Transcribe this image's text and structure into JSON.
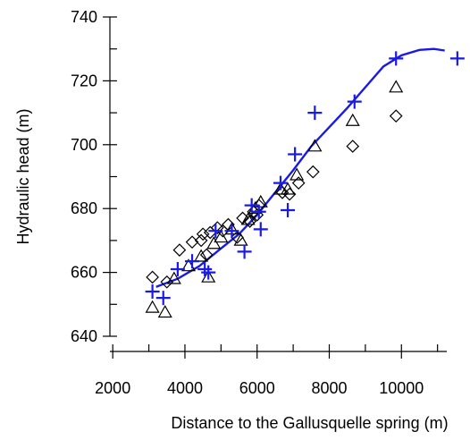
{
  "chart_data": {
    "type": "scatter",
    "title": "",
    "xlabel": "Distance to the Gallusquelle spring (m)",
    "ylabel": "Hydraulic head (m)",
    "xlim": [
      1500,
      11900
    ],
    "ylim": [
      640,
      740
    ],
    "xticks_major": [
      2000,
      4000,
      6000,
      8000,
      10000
    ],
    "xticks_minor": [
      3000,
      5000,
      7000,
      9000,
      11000
    ],
    "yticks_major": [
      640,
      660,
      680,
      700,
      720,
      740
    ],
    "yticks_minor": [
      650,
      670,
      690,
      710,
      730
    ],
    "grid": false,
    "legend": "none",
    "series": [
      {
        "marker": "diamond",
        "color": "#000000",
        "points": [
          [
            3100,
            658.5
          ],
          [
            3500,
            657
          ],
          [
            3850,
            667
          ],
          [
            4200,
            669.5
          ],
          [
            4450,
            670
          ],
          [
            4500,
            672
          ],
          [
            4700,
            672.5
          ],
          [
            4600,
            665.5
          ],
          [
            4900,
            674
          ],
          [
            5050,
            673
          ],
          [
            5200,
            675
          ],
          [
            5450,
            671
          ],
          [
            5600,
            677
          ],
          [
            5800,
            676
          ],
          [
            5900,
            679
          ],
          [
            6050,
            681
          ],
          [
            6000,
            678
          ],
          [
            6700,
            685
          ],
          [
            6900,
            684.5
          ],
          [
            7150,
            688
          ],
          [
            7550,
            691.5
          ],
          [
            8650,
            699.5
          ],
          [
            9850,
            709
          ]
        ]
      },
      {
        "marker": "triangle",
        "color": "#000000",
        "points": [
          [
            3100,
            649
          ],
          [
            3450,
            647.5
          ],
          [
            3700,
            658
          ],
          [
            4100,
            662
          ],
          [
            4450,
            665
          ],
          [
            4650,
            658.5
          ],
          [
            4800,
            669
          ],
          [
            5000,
            671
          ],
          [
            5300,
            673.5
          ],
          [
            5550,
            670
          ],
          [
            5750,
            676.5
          ],
          [
            5950,
            680
          ],
          [
            6100,
            682
          ],
          [
            6650,
            686
          ],
          [
            6850,
            686
          ],
          [
            7100,
            690.5
          ],
          [
            7600,
            699.5
          ],
          [
            8650,
            707.5
          ],
          [
            9850,
            718
          ]
        ]
      },
      {
        "marker": "plus",
        "color": "#1a1ae6",
        "points": [
          [
            3100,
            654
          ],
          [
            3400,
            652
          ],
          [
            3800,
            661
          ],
          [
            4200,
            663.5
          ],
          [
            4550,
            661
          ],
          [
            4650,
            660
          ],
          [
            4850,
            673
          ],
          [
            5300,
            673
          ],
          [
            5650,
            666.5
          ],
          [
            5850,
            681
          ],
          [
            6050,
            679
          ],
          [
            6100,
            673.5
          ],
          [
            6650,
            688
          ],
          [
            6850,
            679.5
          ],
          [
            7050,
            697
          ],
          [
            7600,
            710
          ],
          [
            8700,
            713.5
          ],
          [
            9850,
            727
          ],
          [
            11550,
            727
          ]
        ]
      }
    ],
    "line": {
      "color": "#1a1ae6",
      "points": [
        [
          3200,
          655.5
        ],
        [
          3800,
          658
        ],
        [
          4400,
          662
        ],
        [
          5000,
          667.5
        ],
        [
          5500,
          672
        ],
        [
          6000,
          678
        ],
        [
          6500,
          685
        ],
        [
          7000,
          692
        ],
        [
          7500,
          699.5
        ],
        [
          8000,
          705.5
        ],
        [
          8500,
          711.5
        ],
        [
          9000,
          718
        ],
        [
          9500,
          724.5
        ],
        [
          10000,
          728
        ],
        [
          10500,
          729.7
        ],
        [
          10900,
          730
        ],
        [
          11200,
          729.5
        ]
      ]
    }
  }
}
